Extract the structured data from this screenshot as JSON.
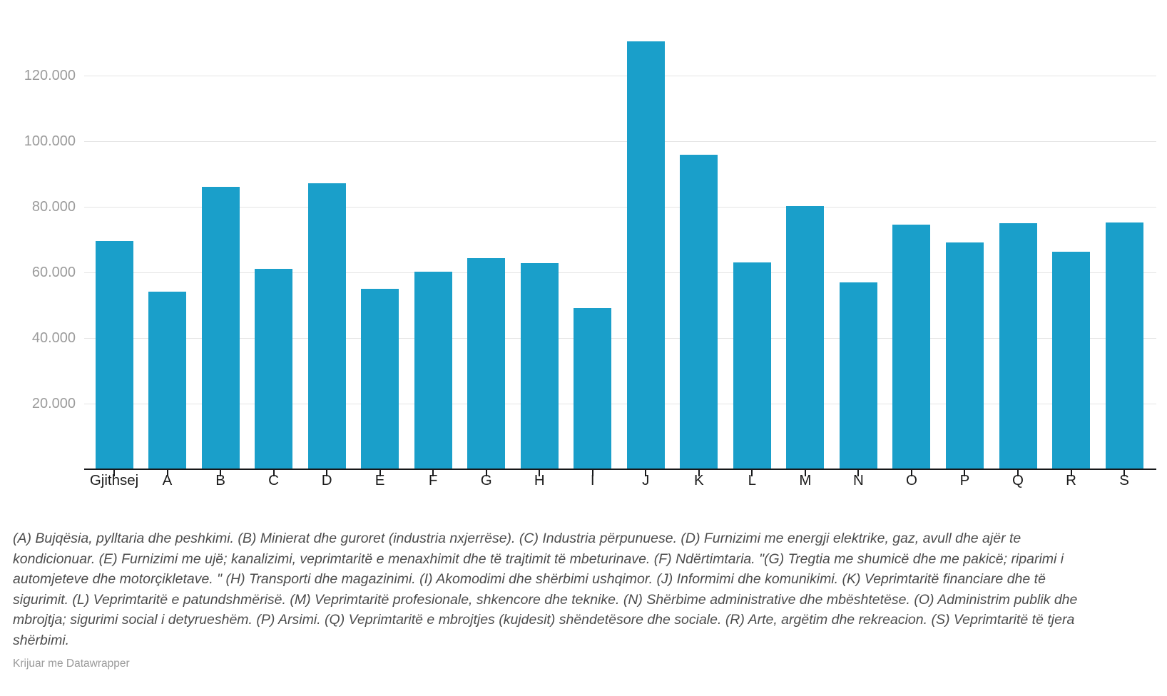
{
  "chart_data": {
    "type": "bar",
    "title": "",
    "xlabel": "",
    "ylabel": "",
    "categories": [
      "Gjithsej",
      "A",
      "B",
      "C",
      "D",
      "E",
      "F",
      "G",
      "H",
      "I",
      "J",
      "K",
      "L",
      "M",
      "N",
      "O",
      "P",
      "Q",
      "R",
      "S"
    ],
    "values": [
      69500,
      54200,
      86000,
      61000,
      87100,
      54900,
      60300,
      64300,
      62800,
      49100,
      130400,
      95800,
      63100,
      80200,
      56900,
      74500,
      69200,
      75000,
      66400,
      75200
    ],
    "ylim": [
      0,
      131500
    ],
    "yticks": [
      20000,
      40000,
      60000,
      80000,
      100000,
      120000
    ],
    "ytick_labels": [
      "20.000",
      "40.000",
      "60.000",
      "80.000",
      "100.000",
      "120.000"
    ],
    "grid": true,
    "legend_position": "none",
    "bar_color": "#1a9fca"
  },
  "footnote": "(A) Bujqësia, pylltaria dhe peshkimi. (B) Minierat dhe guroret (industria nxjerrëse). (C) Industria përpunuese. (D) Furnizimi me energji elektrike, gaz, avull dhe ajër te kondicionuar. (E) Furnizimi me ujë; kanalizimi, veprimtaritë e menaxhimit dhe të trajtimit të mbeturinave. (F) Ndërtimtaria. \"(G) Tregtia me shumicë dhe me pakicë; riparimi i automjeteve dhe motorçikletave. \" (H) Transporti dhe magazinimi. (I) Akomodimi dhe shërbimi ushqimor. (J) Informimi dhe komunikimi. (K) Veprimtaritë financiare dhe të sigurimit. (L) Veprimtaritë e patundshmërisë. (M) Veprimtaritë profesionale, shkencore dhe teknike. (N) Shërbime administrative dhe mbështetëse. (O) Administrim publik dhe mbrojtja; sigurimi social i detyrueshëm. (P) Arsimi. (Q) Veprimtaritë e mbrojtjes (kujdesit) shëndetësore dhe sociale. (R) Arte, argëtim dhe rekreacion. (S) Veprimtaritë të tjera shërbimi.",
  "credit": "Krijuar me Datawrapper"
}
